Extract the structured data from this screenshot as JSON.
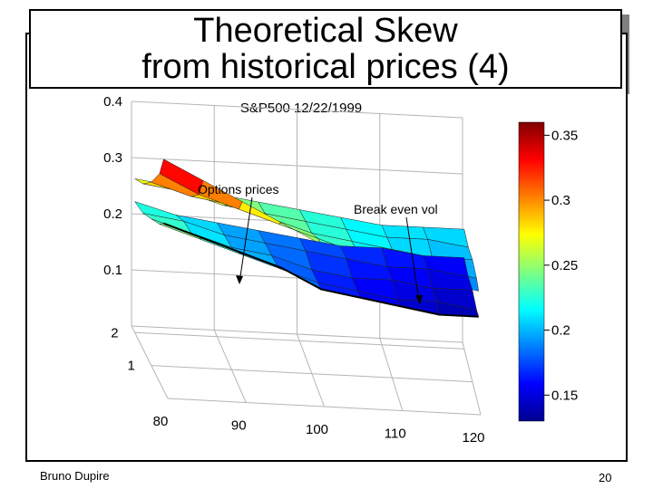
{
  "slide": {
    "title_line1": "Theoretical Skew",
    "title_line2": "from historical prices (4)",
    "author": "Bruno Dupire",
    "page_number": "20"
  },
  "chart_data": {
    "type": "surface",
    "title": "S&P500 12/22/1999",
    "x_ticks": [
      "80",
      "90",
      "100",
      "110",
      "120"
    ],
    "y_ticks": [
      "1",
      "2"
    ],
    "z_ticks": [
      "0.1",
      "0.2",
      "0.3",
      "0.4"
    ],
    "colorbar": {
      "ticks": [
        "0.15",
        "0.2",
        "0.25",
        "0.3",
        "0.35"
      ],
      "range": [
        0.13,
        0.36
      ],
      "colormap": "jet"
    },
    "annotations": [
      {
        "text": "Options prices"
      },
      {
        "text": "Break even vol"
      }
    ],
    "surface": {
      "strikes": [
        80,
        85,
        90,
        95,
        100,
        105,
        110,
        115,
        120
      ],
      "maturities": [
        0.25,
        0.5,
        1.0,
        1.5,
        2.0
      ],
      "options_vol": [
        [
          0.36,
          0.33,
          0.3,
          0.27,
          0.24,
          0.22,
          0.2,
          0.19,
          0.18
        ],
        [
          0.33,
          0.3,
          0.28,
          0.26,
          0.24,
          0.22,
          0.21,
          0.2,
          0.19
        ],
        [
          0.3,
          0.28,
          0.27,
          0.25,
          0.23,
          0.22,
          0.21,
          0.2,
          0.2
        ],
        [
          0.28,
          0.27,
          0.25,
          0.24,
          0.23,
          0.22,
          0.21,
          0.21,
          0.2
        ],
        [
          0.27,
          0.26,
          0.25,
          0.24,
          0.23,
          0.22,
          0.21,
          0.21,
          0.21
        ]
      ],
      "break_even_vol": [
        [
          0.26,
          0.24,
          0.22,
          0.2,
          0.17,
          0.16,
          0.15,
          0.14,
          0.14
        ],
        [
          0.25,
          0.23,
          0.21,
          0.19,
          0.17,
          0.16,
          0.15,
          0.15,
          0.14
        ],
        [
          0.24,
          0.22,
          0.2,
          0.19,
          0.17,
          0.16,
          0.16,
          0.15,
          0.15
        ],
        [
          0.23,
          0.22,
          0.2,
          0.19,
          0.18,
          0.17,
          0.16,
          0.16,
          0.15
        ],
        [
          0.23,
          0.21,
          0.2,
          0.19,
          0.18,
          0.17,
          0.17,
          0.16,
          0.16
        ]
      ]
    }
  }
}
